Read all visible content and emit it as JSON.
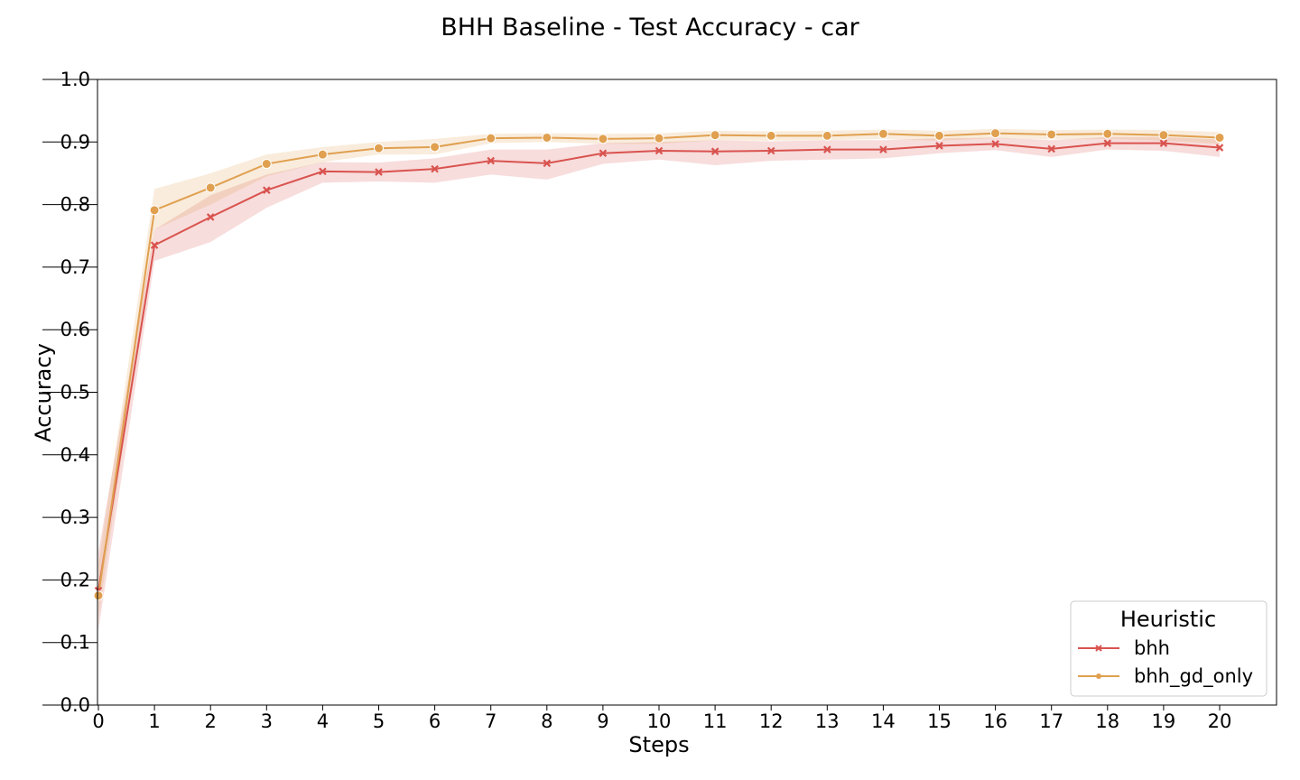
{
  "chart_data": {
    "type": "line",
    "title": "BHH Baseline - Test Accuracy - car",
    "xlabel": "Steps",
    "ylabel": "Accuracy",
    "xlim": [
      0,
      21
    ],
    "ylim": [
      0.0,
      1.0
    ],
    "x": [
      0,
      1,
      2,
      3,
      4,
      5,
      6,
      7,
      8,
      9,
      10,
      11,
      12,
      13,
      14,
      15,
      16,
      17,
      18,
      19,
      20
    ],
    "x_ticks": [
      "0",
      "1",
      "2",
      "3",
      "4",
      "5",
      "6",
      "7",
      "8",
      "9",
      "10",
      "11",
      "12",
      "13",
      "14",
      "15",
      "16",
      "17",
      "18",
      "19",
      "20"
    ],
    "y_ticks": [
      "0.0",
      "0.1",
      "0.2",
      "0.3",
      "0.4",
      "0.5",
      "0.6",
      "0.7",
      "0.8",
      "0.9",
      "1.0"
    ],
    "grid": false,
    "legend": {
      "title": "Heuristic",
      "placement": "lower-right"
    },
    "series": [
      {
        "name": "bhh",
        "color": "#d9534f",
        "marker": "x",
        "values": [
          0.183,
          0.735,
          0.78,
          0.823,
          0.853,
          0.852,
          0.857,
          0.87,
          0.866,
          0.882,
          0.886,
          0.885,
          0.886,
          0.888,
          0.888,
          0.894,
          0.897,
          0.889,
          0.898,
          0.898,
          0.891
        ],
        "ci_lower": [
          0.12,
          0.71,
          0.74,
          0.795,
          0.835,
          0.837,
          0.835,
          0.848,
          0.84,
          0.865,
          0.872,
          0.863,
          0.87,
          0.872,
          0.874,
          0.882,
          0.887,
          0.876,
          0.888,
          0.886,
          0.876
        ],
        "ci_upper": [
          0.245,
          0.76,
          0.815,
          0.848,
          0.868,
          0.867,
          0.874,
          0.888,
          0.888,
          0.898,
          0.9,
          0.903,
          0.901,
          0.903,
          0.903,
          0.906,
          0.907,
          0.903,
          0.908,
          0.908,
          0.904
        ]
      },
      {
        "name": "bhh_gd_only",
        "color": "#e0a050",
        "marker": "o",
        "values": [
          0.175,
          0.791,
          0.827,
          0.865,
          0.88,
          0.89,
          0.892,
          0.906,
          0.907,
          0.905,
          0.906,
          0.911,
          0.91,
          0.91,
          0.913,
          0.91,
          0.914,
          0.912,
          0.913,
          0.911,
          0.907
        ],
        "ci_lower": [
          0.14,
          0.76,
          0.8,
          0.845,
          0.868,
          0.88,
          0.88,
          0.898,
          0.9,
          0.897,
          0.897,
          0.903,
          0.902,
          0.903,
          0.905,
          0.902,
          0.906,
          0.904,
          0.905,
          0.902,
          0.897
        ],
        "ci_upper": [
          0.225,
          0.825,
          0.85,
          0.88,
          0.892,
          0.9,
          0.905,
          0.913,
          0.914,
          0.913,
          0.914,
          0.918,
          0.917,
          0.918,
          0.92,
          0.918,
          0.921,
          0.919,
          0.92,
          0.919,
          0.916
        ]
      }
    ]
  }
}
